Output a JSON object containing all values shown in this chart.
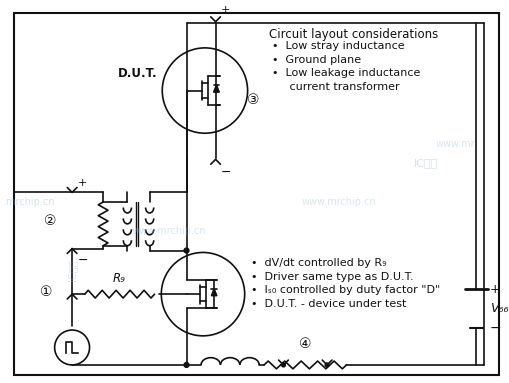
{
  "bg_color": "#ffffff",
  "line_color": "#111111",
  "watermark_color": "#90b8d0",
  "layout_title": "Circuit layout considerations",
  "layout_bullets": [
    "•  Low stray inductance",
    "•  Ground plane",
    "•  Low leakage inductance",
    "     current transformer"
  ],
  "bottom_bullets": [
    "•  dV/dt controlled by R₉",
    "•  Driver same type as D.U.T.",
    "•  Iₛ₀ controlled by duty factor \"D\"",
    "•  D.U.T. - device under test"
  ],
  "DUT_label": "D.U.T.",
  "Rg_label": "R₉",
  "VDD_label": "V₆₆",
  "circ1": "①",
  "circ2": "②",
  "circ3": "③",
  "circ4": "④"
}
